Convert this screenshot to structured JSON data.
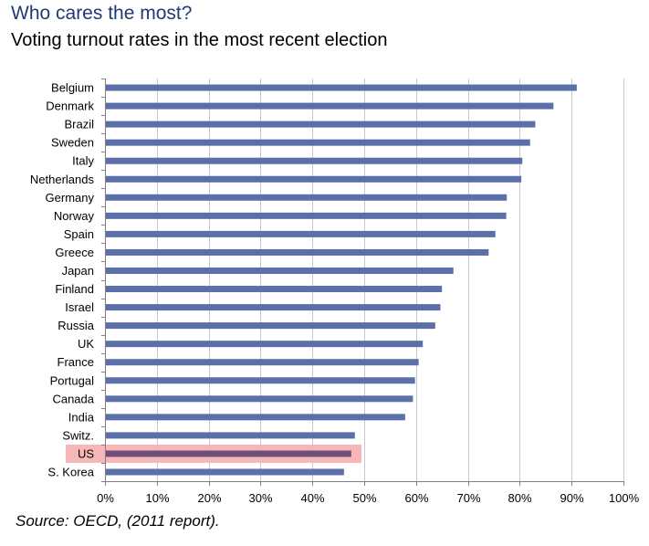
{
  "header": {
    "title": "Who cares the most?",
    "subtitle": "Voting turnout rates in the most recent election"
  },
  "footer": {
    "source": "Source:  OECD, (2011 report)."
  },
  "colors": {
    "bar": "#5b6fa8",
    "highlight_band": "#f7b6b8",
    "highlight_bar": "#6f4f7a",
    "grid": "#c8c8c8",
    "axis": "#808080",
    "title": "#1f3b73"
  },
  "chart_data": {
    "type": "bar",
    "orientation": "horizontal",
    "categories": [
      "Belgium",
      "Denmark",
      "Brazil",
      "Sweden",
      "Italy",
      "Netherlands",
      "Germany",
      "Norway",
      "Spain",
      "Greece",
      "Japan",
      "Finland",
      "Israel",
      "Russia",
      "UK",
      "France",
      "Portugal",
      "Canada",
      "India",
      "Switz.",
      "US",
      "S. Korea"
    ],
    "values": [
      91,
      86.5,
      83,
      82,
      80.5,
      80.3,
      77.5,
      77.4,
      75.3,
      74,
      67.2,
      65,
      64.7,
      63.7,
      61.3,
      60.5,
      59.8,
      59.4,
      57.9,
      48.2,
      47.5,
      46.1
    ],
    "highlight": "US",
    "xlim": [
      0,
      100
    ],
    "xticks": [
      "0%",
      "10%",
      "20%",
      "30%",
      "40%",
      "50%",
      "60%",
      "70%",
      "80%",
      "90%",
      "100%"
    ],
    "x_unit": "percent",
    "grid": "vertical",
    "legend": "none"
  }
}
